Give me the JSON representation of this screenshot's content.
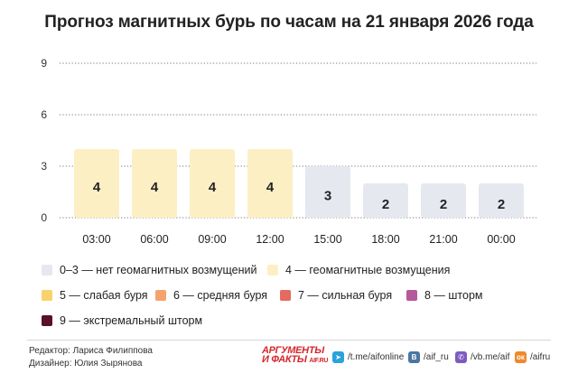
{
  "title": "Прогноз магнитных бурь по часам на 21 января 2026 года",
  "chart_data": {
    "type": "bar",
    "categories": [
      "03:00",
      "06:00",
      "09:00",
      "12:00",
      "15:00",
      "18:00",
      "21:00",
      "00:00"
    ],
    "values": [
      4,
      4,
      4,
      4,
      3,
      2,
      2,
      2
    ],
    "yticks": [
      0,
      3,
      6,
      9
    ],
    "ylim": [
      0,
      9
    ],
    "grid": "dotted-horizontal",
    "bar_colors": {
      "low": "#e6e8f0",
      "moderate": "#fcefc4"
    }
  },
  "legend": [
    {
      "label": "0–3 — нет геомагнитных возмущений",
      "color": "#e6e8f0"
    },
    {
      "label": "4 — геомагнитные возмущения",
      "color": "#fcefc4"
    },
    {
      "label": "5 — слабая буря",
      "color": "#f9d26b"
    },
    {
      "label": "6 — средняя буря",
      "color": "#f4a36d"
    },
    {
      "label": "7 — сильная буря",
      "color": "#e56a60"
    },
    {
      "label": "8 — шторм",
      "color": "#b45a9a"
    },
    {
      "label": "9 — экстремальный шторм",
      "color": "#5a0f2a"
    }
  ],
  "credits": {
    "editor": "Редактор: Лариса Филиппова",
    "designer": "Дизайнер: Юлия Зырянова"
  },
  "logo": {
    "line1": "АРГУМЕНТЫ",
    "line2": "И ФАКТЫ",
    "domain": "AIF.RU"
  },
  "social": [
    {
      "icon": "telegram-icon",
      "label": "/t.me/aifonline",
      "color": "#2aa3dd"
    },
    {
      "icon": "vk-icon",
      "label": "/aif_ru",
      "color": "#4c75a3"
    },
    {
      "icon": "viber-icon",
      "label": "/vb.me/aif",
      "color": "#7d5bbf"
    },
    {
      "icon": "ok-icon",
      "label": "/aifru",
      "color": "#f0892b"
    }
  ]
}
